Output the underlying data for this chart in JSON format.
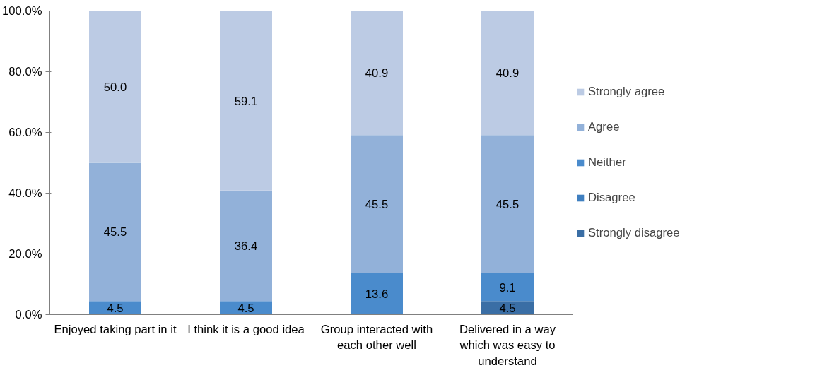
{
  "chart_data": {
    "type": "bar",
    "stacked": true,
    "categories": [
      "Enjoyed taking part in it",
      "I think it is a good idea",
      "Group interacted with each other well",
      "Delivered in a way which was easy to understand"
    ],
    "series": [
      {
        "name": "Strongly disagree",
        "color": "#3a6ea5",
        "values": [
          0,
          0,
          0,
          4.5
        ],
        "value_labels": [
          null,
          null,
          null,
          "4.5"
        ]
      },
      {
        "name": "Disagree",
        "color": "#3f7fc0",
        "values": [
          0,
          0,
          0,
          0
        ],
        "value_labels": [
          null,
          null,
          null,
          null
        ]
      },
      {
        "name": "Neither",
        "color": "#4a8bcc",
        "values": [
          4.5,
          4.5,
          13.6,
          9.1
        ],
        "value_labels": [
          "4.5",
          "4.5",
          "13.6",
          "9.1"
        ]
      },
      {
        "name": "Agree",
        "color": "#92b1d9",
        "values": [
          45.5,
          36.4,
          45.5,
          45.5
        ],
        "value_labels": [
          "45.5",
          "36.4",
          "45.5",
          "45.5"
        ]
      },
      {
        "name": "Strongly agree",
        "color": "#bccbe4",
        "values": [
          50.0,
          59.1,
          40.9,
          40.9
        ],
        "value_labels": [
          "50.0",
          "59.1",
          "40.9",
          "40.9"
        ]
      }
    ],
    "ylim": [
      0,
      100
    ],
    "yticks": [
      {
        "value": 0,
        "label": "0.0%"
      },
      {
        "value": 20,
        "label": "20.0%"
      },
      {
        "value": 40,
        "label": "40.0%"
      },
      {
        "value": 60,
        "label": "60.0%"
      },
      {
        "value": 80,
        "label": "80.0%"
      },
      {
        "value": 100,
        "label": "100.0%"
      }
    ],
    "grid": false,
    "legend": "right"
  }
}
